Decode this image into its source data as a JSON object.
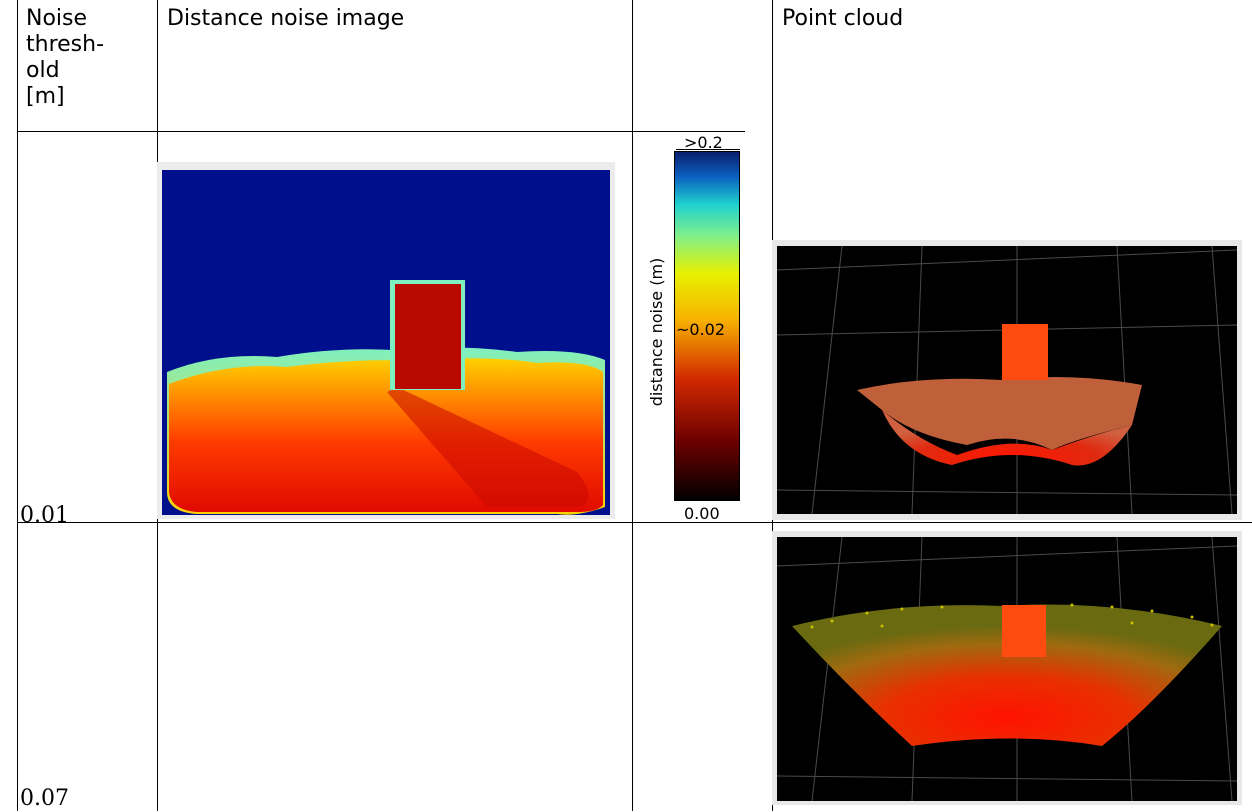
{
  "table": {
    "headers": {
      "threshold": [
        "Noise",
        "thresh-",
        "old",
        "[m]"
      ],
      "noise_image": "Distance noise image",
      "colorbar": "",
      "point_cloud": "Point cloud"
    },
    "rows": [
      {
        "threshold": "0.01",
        "has_noise_image": true,
        "has_point_cloud": true
      },
      {
        "threshold": "0.07",
        "has_noise_image": false,
        "has_point_cloud": true
      }
    ]
  },
  "colorbar": {
    "label": "distance noise (m)",
    "top_label": ">0.2",
    "mid_label": "~0.02",
    "bottom_label": "0.00",
    "colormap": "jet",
    "colors": [
      "#000000",
      "#6e0000",
      "#d22a00",
      "#f7b300",
      "#e8f000",
      "#7ff08a",
      "#1fd0d0",
      "#0a5fbf",
      "#0a1f6e"
    ]
  },
  "images": {
    "noise_image_colors": {
      "background": "#000f8c",
      "object": "#b80a00",
      "ground_hot": "#e71b00",
      "ground_mid": "#ff8c00",
      "edge": "#7ff0c0"
    },
    "point_cloud_colors": {
      "background": "#000000",
      "grid": "#5a5a5a",
      "points_near": "#ff2000",
      "points_far": "#c8c000",
      "box": "#ff4a10"
    }
  }
}
